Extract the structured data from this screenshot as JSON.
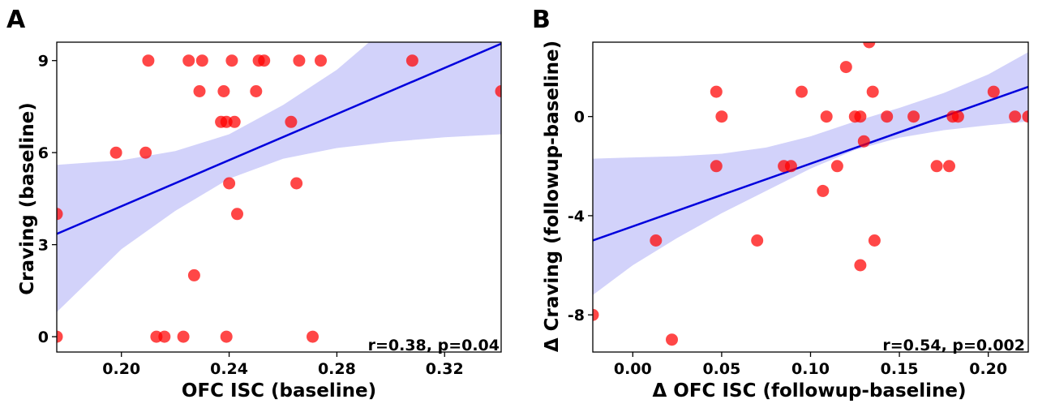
{
  "chart_data": [
    {
      "type": "scatter",
      "panel_label": "A",
      "xlabel": "OFC ISC (baseline)",
      "ylabel": "Craving (baseline)",
      "xlim": [
        0.176,
        0.341
      ],
      "ylim": [
        -0.5,
        9.6
      ],
      "xticks": [
        0.2,
        0.24,
        0.28,
        0.32
      ],
      "xtick_labels": [
        "0.20",
        "0.24",
        "0.28",
        "0.32"
      ],
      "yticks": [
        0,
        3,
        6,
        9
      ],
      "ytick_labels": [
        "0",
        "3",
        "6",
        "9"
      ],
      "annotation": "r=0.38, p=0.04",
      "grid": false,
      "point_color": "#ff0000",
      "line_color": "#0000dd",
      "band_color": "#d2d2fa",
      "points": [
        {
          "x": 0.176,
          "y": 4
        },
        {
          "x": 0.176,
          "y": 0
        },
        {
          "x": 0.198,
          "y": 6
        },
        {
          "x": 0.209,
          "y": 6
        },
        {
          "x": 0.21,
          "y": 9
        },
        {
          "x": 0.213,
          "y": 0
        },
        {
          "x": 0.216,
          "y": 0
        },
        {
          "x": 0.223,
          "y": 0
        },
        {
          "x": 0.225,
          "y": 9
        },
        {
          "x": 0.227,
          "y": 2
        },
        {
          "x": 0.229,
          "y": 8
        },
        {
          "x": 0.23,
          "y": 9
        },
        {
          "x": 0.237,
          "y": 7
        },
        {
          "x": 0.238,
          "y": 8
        },
        {
          "x": 0.239,
          "y": 0
        },
        {
          "x": 0.239,
          "y": 7
        },
        {
          "x": 0.24,
          "y": 5
        },
        {
          "x": 0.241,
          "y": 9
        },
        {
          "x": 0.242,
          "y": 7
        },
        {
          "x": 0.243,
          "y": 4
        },
        {
          "x": 0.25,
          "y": 8
        },
        {
          "x": 0.251,
          "y": 9
        },
        {
          "x": 0.253,
          "y": 9
        },
        {
          "x": 0.263,
          "y": 7
        },
        {
          "x": 0.265,
          "y": 5
        },
        {
          "x": 0.266,
          "y": 9
        },
        {
          "x": 0.271,
          "y": 0
        },
        {
          "x": 0.274,
          "y": 9
        },
        {
          "x": 0.308,
          "y": 9
        },
        {
          "x": 0.341,
          "y": 8
        }
      ],
      "regression": {
        "x": [
          0.176,
          0.341
        ],
        "y": [
          3.35,
          9.55
        ]
      },
      "ci_band": {
        "x": [
          0.176,
          0.2,
          0.22,
          0.24,
          0.26,
          0.28,
          0.3,
          0.32,
          0.341
        ],
        "lower": [
          0.8,
          2.85,
          4.1,
          5.15,
          5.8,
          6.15,
          6.35,
          6.5,
          6.6
        ],
        "upper": [
          5.6,
          5.75,
          6.05,
          6.6,
          7.55,
          8.7,
          10.2,
          11.8,
          13.0
        ]
      }
    },
    {
      "type": "scatter",
      "panel_label": "B",
      "xlabel": "Δ OFC ISC (followup-baseline)",
      "ylabel": "Δ Craving (followup-baseline)",
      "xlim": [
        -0.0225,
        0.2225
      ],
      "ylim": [
        -9.5,
        3.0
      ],
      "xticks": [
        0.0,
        0.05,
        0.1,
        0.15,
        0.2
      ],
      "xtick_labels": [
        "0.00",
        "0.05",
        "0.10",
        "0.15",
        "0.20"
      ],
      "yticks": [
        0,
        -4,
        -8
      ],
      "ytick_labels": [
        "0",
        "-4",
        "-8"
      ],
      "annotation": "r=0.54, p=0.002",
      "grid": false,
      "point_color": "#ff0000",
      "line_color": "#0000dd",
      "band_color": "#d2d2fa",
      "points": [
        {
          "x": -0.0225,
          "y": -8
        },
        {
          "x": 0.013,
          "y": -5
        },
        {
          "x": 0.022,
          "y": -9
        },
        {
          "x": 0.047,
          "y": 1
        },
        {
          "x": 0.047,
          "y": -2
        },
        {
          "x": 0.05,
          "y": 0
        },
        {
          "x": 0.07,
          "y": -5
        },
        {
          "x": 0.085,
          "y": -2
        },
        {
          "x": 0.089,
          "y": -2
        },
        {
          "x": 0.095,
          "y": 1
        },
        {
          "x": 0.107,
          "y": -3
        },
        {
          "x": 0.109,
          "y": 0
        },
        {
          "x": 0.115,
          "y": -2
        },
        {
          "x": 0.12,
          "y": 2
        },
        {
          "x": 0.125,
          "y": 0
        },
        {
          "x": 0.128,
          "y": 0
        },
        {
          "x": 0.128,
          "y": -6
        },
        {
          "x": 0.13,
          "y": -1
        },
        {
          "x": 0.133,
          "y": 3
        },
        {
          "x": 0.135,
          "y": 1
        },
        {
          "x": 0.136,
          "y": -5
        },
        {
          "x": 0.143,
          "y": 0
        },
        {
          "x": 0.158,
          "y": 0
        },
        {
          "x": 0.171,
          "y": -2
        },
        {
          "x": 0.178,
          "y": -2
        },
        {
          "x": 0.18,
          "y": 0
        },
        {
          "x": 0.183,
          "y": 0
        },
        {
          "x": 0.203,
          "y": 1
        },
        {
          "x": 0.215,
          "y": 0
        },
        {
          "x": 0.2225,
          "y": 0
        }
      ],
      "regression": {
        "x": [
          -0.0225,
          0.2225
        ],
        "y": [
          -5.0,
          1.2
        ]
      },
      "ci_band": {
        "x": [
          -0.0225,
          0.0,
          0.025,
          0.05,
          0.075,
          0.1,
          0.125,
          0.15,
          0.175,
          0.2,
          0.2225
        ],
        "lower": [
          -7.2,
          -6.0,
          -4.9,
          -3.9,
          -3.0,
          -2.1,
          -1.35,
          -0.85,
          -0.55,
          -0.35,
          -0.2
        ],
        "upper": [
          -1.7,
          -1.65,
          -1.6,
          -1.5,
          -1.25,
          -0.8,
          -0.2,
          0.35,
          0.95,
          1.7,
          2.6
        ]
      }
    }
  ]
}
